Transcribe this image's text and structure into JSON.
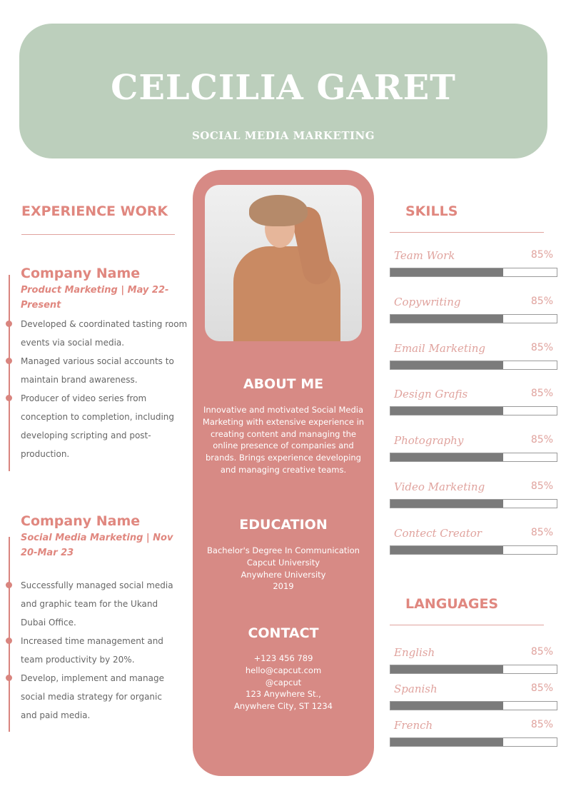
{
  "header": {
    "name": "CELCILIA GARET",
    "title": "SOCIAL MEDIA MARKETING"
  },
  "colors": {
    "header_bg": "#bccfbc",
    "accent": "#d78a85",
    "heading": "#e0877f",
    "bar_fill": "#7b7b7b"
  },
  "experience": {
    "title": "EXPERIENCE WORK",
    "jobs": [
      {
        "company": "Company Name",
        "position": "Product Marketing | May 22-Present",
        "bullets": [
          "Developed & coordinated tasting room events via social media.",
          "Managed various social accounts to maintain brand awareness.",
          "Producer of video series from conception to completion, including developing scripting and post-production."
        ]
      },
      {
        "company": "Company Name",
        "position": "Social Media Marketing | Nov 20-Mar 23",
        "bullets": [
          "Successfully managed social media and graphic team for the Ukand Dubai Office.",
          "Increased time management and team productivity by 20%.",
          "Develop, implement and manage social media strategy for organic and paid media."
        ]
      }
    ]
  },
  "about": {
    "title": "ABOUT ME",
    "text": "Innovative and motivated Social Media Marketing with extensive experience in creating content and managing the online presence of companies and brands. Brings experience developing and managing creative teams."
  },
  "education": {
    "title": "EDUCATION",
    "lines": [
      "Bachelor's Degree In Communication",
      "Capcut University",
      "Anywhere University",
      "2019"
    ]
  },
  "contact": {
    "title": "CONTACT",
    "lines": [
      "+123  456 789",
      "hello@capcut.com",
      "@capcut",
      "123 Anywhere St.,",
      "Anywhere City, ST 1234"
    ]
  },
  "skills": {
    "title": "SKILLS",
    "items": [
      {
        "label": "Team Work",
        "percent": "85%",
        "fill": 0.68
      },
      {
        "label": "Copywriting",
        "percent": "85%",
        "fill": 0.68
      },
      {
        "label": "Email Marketing",
        "percent": "85%",
        "fill": 0.68
      },
      {
        "label": "Design Grafis",
        "percent": "85%",
        "fill": 0.68
      },
      {
        "label": "Photography",
        "percent": "85%",
        "fill": 0.68
      },
      {
        "label": "Video Marketing",
        "percent": "85%",
        "fill": 0.68
      },
      {
        "label": "Contect Creator",
        "percent": "85%",
        "fill": 0.68
      }
    ]
  },
  "languages": {
    "title": "LANGUAGES",
    "items": [
      {
        "label": "English",
        "percent": "85%",
        "fill": 0.68
      },
      {
        "label": "Spanish",
        "percent": "85%",
        "fill": 0.68
      },
      {
        "label": "French",
        "percent": "85%",
        "fill": 0.68
      }
    ]
  }
}
